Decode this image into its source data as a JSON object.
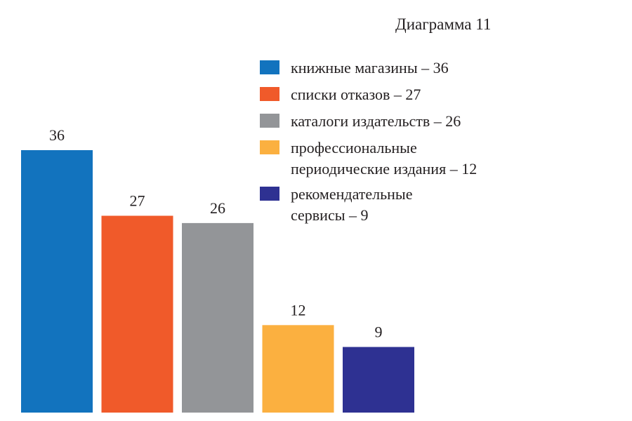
{
  "chart_data": {
    "type": "bar",
    "title": "Диаграмма 11",
    "categories": [
      "книжные магазины",
      "списки отказов",
      "каталоги издательств",
      "профессиональные периодические издания",
      "рекомендательные сервисы"
    ],
    "values": [
      36,
      27,
      26,
      12,
      9
    ],
    "data_labels": [
      "36",
      "27",
      "26",
      "12",
      "9"
    ],
    "colors": [
      "#1273be",
      "#f05a2a",
      "#939598",
      "#fbb040",
      "#2e3192"
    ],
    "legend": [
      "книжные магазины – 36",
      "списки отказов – 27",
      "каталоги издательств – 26",
      "профессиональные периодические издания – 12",
      "рекомендательные сервисы – 9"
    ],
    "legend_placement": "top-right",
    "xlabel": "",
    "ylabel": "",
    "ylim": [
      0,
      36
    ],
    "grid": false
  }
}
